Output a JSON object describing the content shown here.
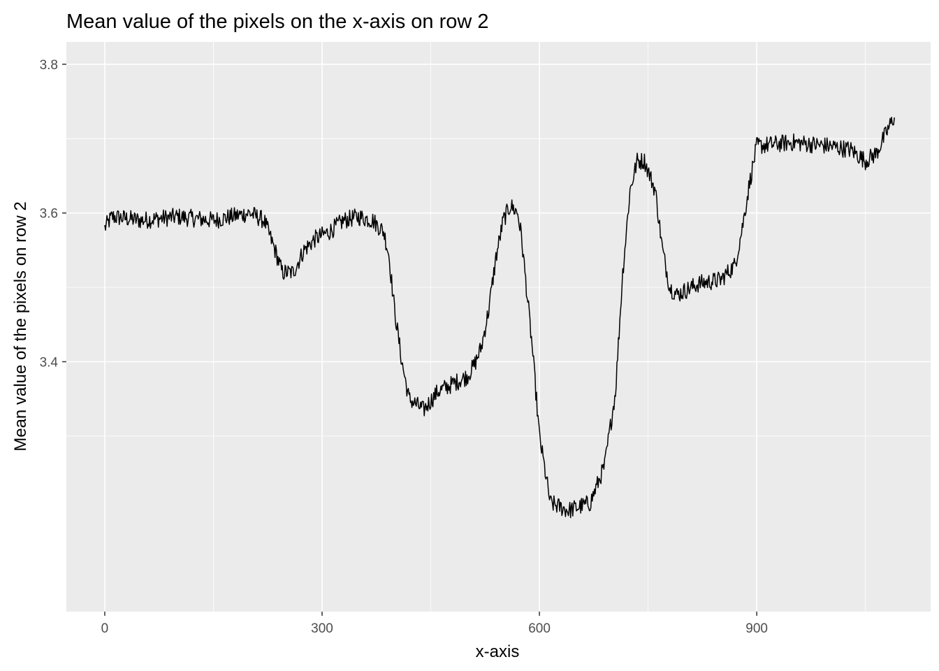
{
  "chart_data": {
    "type": "line",
    "title": "Mean value of the pixels on the x-axis on row 2",
    "xlabel": "x-axis",
    "ylabel": "Mean value of the pixels on row 2",
    "xlim": [
      -53,
      1140
    ],
    "ylim": [
      3.064,
      3.83
    ],
    "x_ticks": [
      0,
      300,
      600,
      900
    ],
    "x_tick_labels": [
      "0",
      "300",
      "600",
      "900"
    ],
    "y_ticks": [
      3.4,
      3.6,
      3.8
    ],
    "y_tick_labels": [
      "3.4",
      "3.6",
      "3.8"
    ],
    "grid": true,
    "panel_background": "#ebebeb",
    "grid_color": "#ffffff",
    "line_color": "#000000",
    "noise_amplitude": 0.012,
    "series": [
      {
        "x": [
          0,
          10,
          50,
          100,
          150,
          200,
          220,
          235,
          245,
          260,
          275,
          290,
          310,
          330,
          350,
          370,
          385,
          392,
          400,
          410,
          420,
          440,
          460,
          480,
          500,
          510,
          520,
          530,
          540,
          550,
          560,
          570,
          575,
          580,
          590,
          600,
          615,
          640,
          670,
          690,
          705,
          715,
          725,
          735,
          745,
          760,
          770,
          780,
          790,
          800,
          820,
          850,
          870,
          880,
          890,
          900,
          950,
          1000,
          1030,
          1050,
          1065,
          1080,
          1090
        ],
        "y": [
          3.58,
          3.595,
          3.59,
          3.595,
          3.59,
          3.6,
          3.59,
          3.55,
          3.52,
          3.52,
          3.55,
          3.565,
          3.575,
          3.59,
          3.595,
          3.59,
          3.575,
          3.545,
          3.47,
          3.4,
          3.35,
          3.335,
          3.36,
          3.37,
          3.38,
          3.395,
          3.42,
          3.47,
          3.54,
          3.59,
          3.61,
          3.6,
          3.57,
          3.52,
          3.42,
          3.3,
          3.21,
          3.2,
          3.21,
          3.26,
          3.36,
          3.52,
          3.63,
          3.67,
          3.67,
          3.63,
          3.55,
          3.5,
          3.49,
          3.495,
          3.505,
          3.51,
          3.53,
          3.58,
          3.64,
          3.69,
          3.695,
          3.69,
          3.685,
          3.67,
          3.68,
          3.71,
          3.73
        ]
      }
    ]
  }
}
